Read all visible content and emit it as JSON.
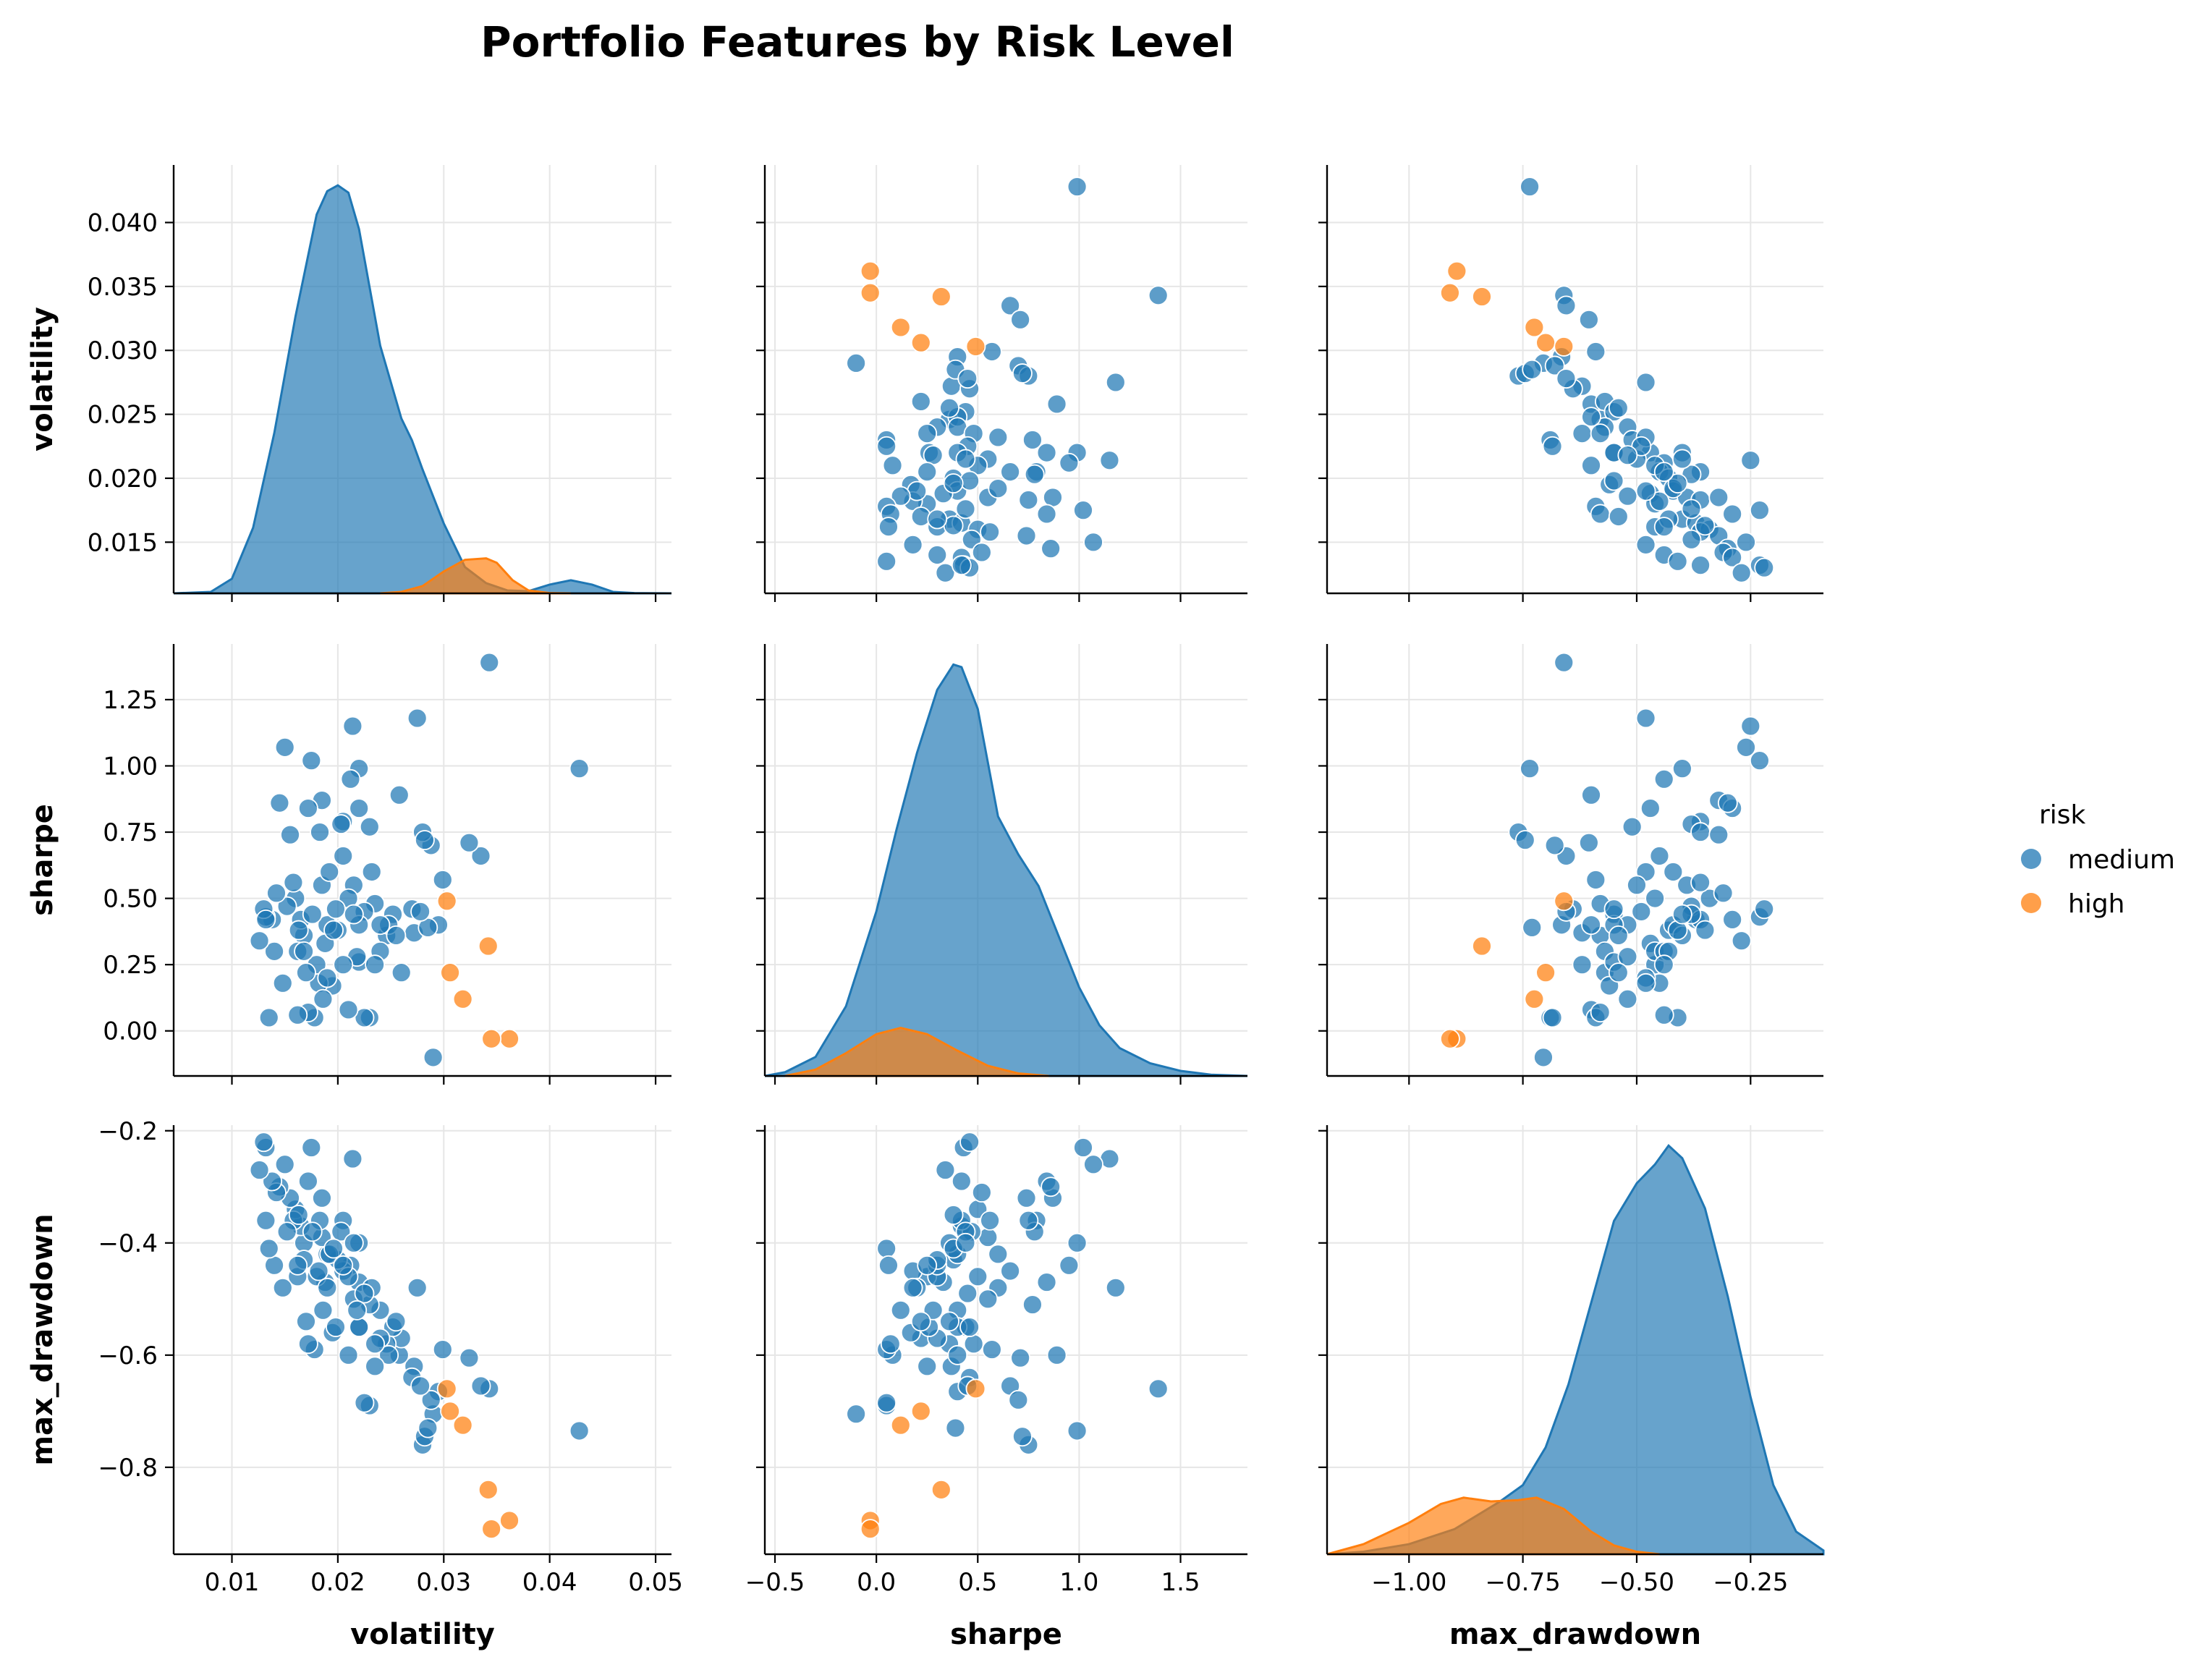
{
  "chart_data": {
    "type": "scatter",
    "title": "Portfolio Features by Risk Level",
    "variables": [
      "volatility",
      "sharpe",
      "max_drawdown"
    ],
    "axis_labels": {
      "volatility": "volatility",
      "sharpe": "sharpe",
      "max_drawdown": "max_drawdown"
    },
    "axes": {
      "volatility": {
        "lim": [
          0.0045,
          0.0515
        ],
        "ticks": [
          0.01,
          0.02,
          0.03,
          0.04,
          0.05
        ],
        "tick_labels": [
          "0.01",
          "0.02",
          "0.03",
          "0.04",
          "0.05"
        ]
      },
      "volatility_y": {
        "lim": [
          0.011,
          0.0445
        ],
        "ticks": [
          0.015,
          0.02,
          0.025,
          0.03,
          0.035,
          0.04
        ],
        "tick_labels": [
          "0.015",
          "0.020",
          "0.025",
          "0.030",
          "0.035",
          "0.040"
        ]
      },
      "sharpe": {
        "lim": [
          -0.55,
          1.83
        ],
        "ticks": [
          -0.5,
          0.0,
          0.5,
          1.0,
          1.5
        ],
        "tick_labels": [
          "−0.5",
          "0.0",
          "0.5",
          "1.0",
          "1.5"
        ]
      },
      "sharpe_y": {
        "lim": [
          -0.17,
          1.46
        ],
        "ticks": [
          0.0,
          0.25,
          0.5,
          0.75,
          1.0,
          1.25
        ],
        "tick_labels": [
          "0.00",
          "0.25",
          "0.50",
          "0.75",
          "1.00",
          "1.25"
        ]
      },
      "max_drawdown": {
        "lim": [
          -1.18,
          -0.09
        ],
        "ticks": [
          -1.0,
          -0.75,
          -0.5,
          -0.25
        ],
        "tick_labels": [
          "−1.00",
          "−0.75",
          "−0.50",
          "−0.25"
        ]
      },
      "max_drawdown_y": {
        "lim": [
          -0.955,
          -0.19
        ],
        "ticks": [
          -0.8,
          -0.6,
          -0.4,
          -0.2
        ],
        "tick_labels": [
          "−0.8",
          "−0.6",
          "−0.4",
          "−0.2"
        ]
      }
    },
    "grid": true,
    "legend": {
      "title": "risk",
      "placement": "right",
      "entries": [
        {
          "label": "medium",
          "color": "#1f77b4"
        },
        {
          "label": "high",
          "color": "#ff7f0e"
        }
      ]
    },
    "series": [
      {
        "name": "medium",
        "color": "#1f77b4",
        "points": [
          [
            0.0428,
            0.99,
            -0.735
          ],
          [
            0.0343,
            1.39,
            -0.66
          ],
          [
            0.0335,
            0.66,
            -0.655
          ],
          [
            0.0324,
            0.71,
            -0.605
          ],
          [
            0.0299,
            0.57,
            -0.59
          ],
          [
            0.029,
            -0.1,
            -0.705
          ],
          [
            0.0295,
            0.4,
            -0.665
          ],
          [
            0.0288,
            0.7,
            -0.68
          ],
          [
            0.028,
            0.75,
            -0.76
          ],
          [
            0.0282,
            0.72,
            -0.745
          ],
          [
            0.0275,
            1.18,
            -0.48
          ],
          [
            0.0272,
            0.37,
            -0.62
          ],
          [
            0.027,
            0.46,
            -0.64
          ],
          [
            0.0285,
            0.39,
            -0.73
          ],
          [
            0.0278,
            0.45,
            -0.655
          ],
          [
            0.0258,
            0.89,
            -0.6
          ],
          [
            0.026,
            0.22,
            -0.57
          ],
          [
            0.0246,
            0.36,
            -0.58
          ],
          [
            0.0252,
            0.44,
            -0.55
          ],
          [
            0.024,
            0.3,
            -0.57
          ],
          [
            0.0248,
            0.4,
            -0.6
          ],
          [
            0.023,
            0.05,
            -0.69
          ],
          [
            0.0225,
            0.05,
            -0.685
          ],
          [
            0.022,
            0.26,
            -0.55
          ],
          [
            0.024,
            0.4,
            -0.52
          ],
          [
            0.0235,
            0.25,
            -0.62
          ],
          [
            0.023,
            0.77,
            -0.51
          ],
          [
            0.022,
            0.84,
            -0.47
          ],
          [
            0.0235,
            0.48,
            -0.58
          ],
          [
            0.0232,
            0.6,
            -0.48
          ],
          [
            0.0214,
            1.15,
            -0.25
          ],
          [
            0.022,
            0.99,
            -0.4
          ],
          [
            0.0212,
            0.95,
            -0.44
          ],
          [
            0.0205,
            0.79,
            -0.36
          ],
          [
            0.0203,
            0.78,
            -0.38
          ],
          [
            0.0205,
            0.66,
            -0.45
          ],
          [
            0.0215,
            0.55,
            -0.5
          ],
          [
            0.021,
            0.5,
            -0.46
          ],
          [
            0.0225,
            0.45,
            -0.49
          ],
          [
            0.022,
            0.4,
            -0.55
          ],
          [
            0.0218,
            0.28,
            -0.52
          ],
          [
            0.021,
            0.08,
            -0.6
          ],
          [
            0.0195,
            0.17,
            -0.56
          ],
          [
            0.02,
            0.38,
            -0.43
          ],
          [
            0.019,
            0.4,
            -0.42
          ],
          [
            0.0185,
            0.55,
            -0.39
          ],
          [
            0.0188,
            0.33,
            -0.47
          ],
          [
            0.0198,
            0.46,
            -0.55
          ],
          [
            0.0192,
            0.6,
            -0.42
          ],
          [
            0.0183,
            0.75,
            -0.36
          ],
          [
            0.0185,
            0.87,
            -0.32
          ],
          [
            0.0175,
            1.02,
            -0.23
          ],
          [
            0.0172,
            0.84,
            -0.29
          ],
          [
            0.018,
            0.25,
            -0.46
          ],
          [
            0.0182,
            0.18,
            -0.45
          ],
          [
            0.019,
            0.2,
            -0.48
          ],
          [
            0.0186,
            0.12,
            -0.52
          ],
          [
            0.0178,
            0.05,
            -0.59
          ],
          [
            0.0172,
            0.07,
            -0.58
          ],
          [
            0.0168,
            0.36,
            -0.4
          ],
          [
            0.0165,
            0.42,
            -0.37
          ],
          [
            0.016,
            0.5,
            -0.34
          ],
          [
            0.0158,
            0.56,
            -0.36
          ],
          [
            0.0162,
            0.3,
            -0.46
          ],
          [
            0.017,
            0.22,
            -0.54
          ],
          [
            0.0155,
            0.74,
            -0.32
          ],
          [
            0.0152,
            0.47,
            -0.38
          ],
          [
            0.015,
            1.07,
            -0.26
          ],
          [
            0.0145,
            0.86,
            -0.3
          ],
          [
            0.0148,
            0.18,
            -0.48
          ],
          [
            0.0142,
            0.52,
            -0.31
          ],
          [
            0.014,
            0.3,
            -0.44
          ],
          [
            0.0138,
            0.42,
            -0.29
          ],
          [
            0.0135,
            0.05,
            -0.41
          ],
          [
            0.0132,
            0.43,
            -0.23
          ],
          [
            0.013,
            0.46,
            -0.22
          ],
          [
            0.0126,
            0.34,
            -0.27
          ],
          [
            0.0132,
            0.42,
            -0.36
          ],
          [
            0.0163,
            0.38,
            -0.35
          ],
          [
            0.0168,
            0.3,
            -0.43
          ],
          [
            0.0176,
            0.44,
            -0.38
          ],
          [
            0.0196,
            0.38,
            -0.41
          ],
          [
            0.0205,
            0.25,
            -0.44
          ],
          [
            0.0215,
            0.44,
            -0.4
          ],
          [
            0.0162,
            0.06,
            -0.44
          ],
          [
            0.0255,
            0.36,
            -0.54
          ]
        ]
      },
      {
        "name": "high",
        "color": "#ff7f0e",
        "points": [
          [
            0.0362,
            -0.03,
            -0.895
          ],
          [
            0.0345,
            -0.03,
            -0.91
          ],
          [
            0.0342,
            0.32,
            -0.84
          ],
          [
            0.0318,
            0.12,
            -0.725
          ],
          [
            0.0306,
            0.22,
            -0.7
          ],
          [
            0.0303,
            0.49,
            -0.66
          ]
        ]
      }
    ],
    "kde": {
      "volatility": {
        "medium": [
          [
            0.0045,
            0
          ],
          [
            0.008,
            0.1
          ],
          [
            0.01,
            1.0
          ],
          [
            0.012,
            4.5
          ],
          [
            0.014,
            11
          ],
          [
            0.016,
            19
          ],
          [
            0.018,
            26
          ],
          [
            0.019,
            27.6
          ],
          [
            0.02,
            28
          ],
          [
            0.021,
            27.5
          ],
          [
            0.022,
            25
          ],
          [
            0.024,
            17
          ],
          [
            0.026,
            12
          ],
          [
            0.027,
            10.5
          ],
          [
            0.028,
            8.5
          ],
          [
            0.03,
            4.8
          ],
          [
            0.032,
            1.8
          ],
          [
            0.034,
            0.7
          ],
          [
            0.036,
            0.2
          ],
          [
            0.038,
            0.15
          ],
          [
            0.04,
            0.6
          ],
          [
            0.042,
            0.9
          ],
          [
            0.044,
            0.6
          ],
          [
            0.046,
            0.1
          ],
          [
            0.048,
            0.02
          ],
          [
            0.0515,
            0
          ]
        ],
        "high": [
          [
            0.024,
            0
          ],
          [
            0.026,
            0.1
          ],
          [
            0.028,
            0.5
          ],
          [
            0.03,
            1.5
          ],
          [
            0.032,
            2.3
          ],
          [
            0.034,
            2.4
          ],
          [
            0.035,
            2.1
          ],
          [
            0.0365,
            0.9
          ],
          [
            0.038,
            0.2
          ],
          [
            0.04,
            0.02
          ],
          [
            0.042,
            0
          ]
        ]
      },
      "sharpe": {
        "medium": [
          [
            -0.55,
            0
          ],
          [
            -0.45,
            0.03
          ],
          [
            -0.3,
            0.15
          ],
          [
            -0.15,
            0.55
          ],
          [
            0.0,
            1.3
          ],
          [
            0.1,
            1.95
          ],
          [
            0.2,
            2.55
          ],
          [
            0.3,
            3.05
          ],
          [
            0.38,
            3.25
          ],
          [
            0.42,
            3.23
          ],
          [
            0.5,
            2.9
          ],
          [
            0.6,
            2.05
          ],
          [
            0.7,
            1.75
          ],
          [
            0.8,
            1.5
          ],
          [
            0.9,
            1.1
          ],
          [
            1.0,
            0.7
          ],
          [
            1.1,
            0.4
          ],
          [
            1.2,
            0.22
          ],
          [
            1.35,
            0.1
          ],
          [
            1.5,
            0.04
          ],
          [
            1.65,
            0.01
          ],
          [
            1.83,
            0
          ]
        ],
        "high": [
          [
            -0.45,
            0
          ],
          [
            -0.3,
            0.05
          ],
          [
            -0.15,
            0.18
          ],
          [
            0.0,
            0.33
          ],
          [
            0.12,
            0.38
          ],
          [
            0.25,
            0.33
          ],
          [
            0.4,
            0.2
          ],
          [
            0.55,
            0.08
          ],
          [
            0.7,
            0.02
          ],
          [
            0.85,
            0
          ]
        ]
      },
      "max_drawdown": {
        "medium": [
          [
            -1.18,
            0
          ],
          [
            -1.1,
            0.02
          ],
          [
            -1.0,
            0.08
          ],
          [
            -0.9,
            0.2
          ],
          [
            -0.8,
            0.42
          ],
          [
            -0.75,
            0.55
          ],
          [
            -0.7,
            0.85
          ],
          [
            -0.65,
            1.35
          ],
          [
            -0.6,
            2.0
          ],
          [
            -0.55,
            2.65
          ],
          [
            -0.5,
            2.95
          ],
          [
            -0.46,
            3.1
          ],
          [
            -0.43,
            3.25
          ],
          [
            -0.4,
            3.15
          ],
          [
            -0.35,
            2.75
          ],
          [
            -0.3,
            2.05
          ],
          [
            -0.25,
            1.25
          ],
          [
            -0.2,
            0.55
          ],
          [
            -0.15,
            0.18
          ],
          [
            -0.09,
            0.03
          ]
        ],
        "high": [
          [
            -1.18,
            0
          ],
          [
            -1.1,
            0.08
          ],
          [
            -1.0,
            0.25
          ],
          [
            -0.93,
            0.4
          ],
          [
            -0.88,
            0.45
          ],
          [
            -0.82,
            0.42
          ],
          [
            -0.76,
            0.43
          ],
          [
            -0.72,
            0.45
          ],
          [
            -0.66,
            0.36
          ],
          [
            -0.6,
            0.18
          ],
          [
            -0.55,
            0.07
          ],
          [
            -0.5,
            0.02
          ],
          [
            -0.45,
            0
          ]
        ]
      }
    }
  }
}
